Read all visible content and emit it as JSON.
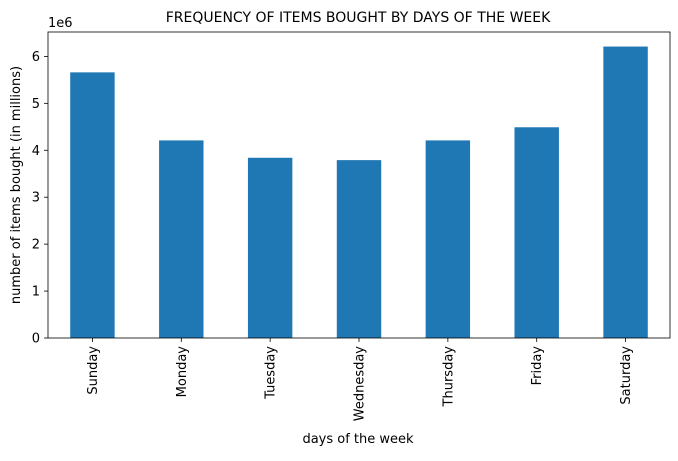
{
  "chart_data": {
    "type": "bar",
    "title": "FREQUENCY OF ITEMS BOUGHT BY DAYS OF THE WEEK",
    "xlabel": "days of the week",
    "ylabel": "number of items bought (in millions)",
    "y_offset_label": "1e6",
    "categories": [
      "Sunday",
      "Monday",
      "Tuesday",
      "Wednesday",
      "Thursday",
      "Friday",
      "Saturday"
    ],
    "values": [
      5660000,
      4210000,
      3840000,
      3790000,
      4210000,
      4490000,
      6210000
    ],
    "ylim": [
      0,
      6520000
    ],
    "yticks": [
      0,
      1000000,
      2000000,
      3000000,
      4000000,
      5000000,
      6000000
    ],
    "ytick_labels": [
      "0",
      "1",
      "2",
      "3",
      "4",
      "5",
      "6"
    ],
    "bar_color": "#1f77b4",
    "grid": false,
    "legend": false
  }
}
